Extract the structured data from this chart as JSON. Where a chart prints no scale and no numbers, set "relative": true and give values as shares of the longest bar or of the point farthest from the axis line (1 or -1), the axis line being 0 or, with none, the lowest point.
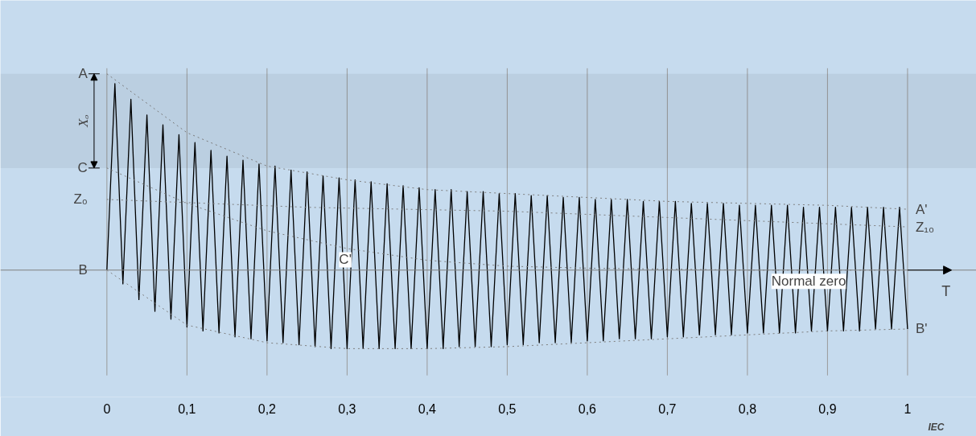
{
  "chart_data": {
    "type": "line",
    "relative": true,
    "xlabel": "T",
    "grid": "x",
    "xlim": [
      -0.133,
      1.086
    ],
    "xticks": [
      0,
      {
        "value": 0.1,
        "label": "0,1"
      },
      {
        "value": 0.2,
        "label": "0,2"
      },
      {
        "value": 0.3,
        "label": "0,3"
      },
      {
        "value": 0.4,
        "label": "0,4"
      },
      {
        "value": 0.5,
        "label": "0,5"
      },
      {
        "value": 0.6,
        "label": "0,6"
      },
      {
        "value": 0.7,
        "label": "0,7"
      },
      {
        "value": 0.8,
        "label": "0,8"
      },
      {
        "value": 0.9,
        "label": "0,9"
      },
      1
    ],
    "series": [
      {
        "color": "#000000",
        "line_style": "solid",
        "x": [
          0,
          0.01,
          0.02,
          0.03,
          0.04,
          0.05,
          0.06,
          0.07,
          0.08,
          0.09,
          0.1,
          0.11,
          0.12,
          0.13,
          0.14,
          0.15,
          0.16,
          0.17,
          0.18,
          0.19,
          0.2,
          0.21,
          0.22,
          0.23,
          0.24,
          0.25,
          0.26,
          0.27,
          0.28,
          0.29,
          0.3,
          0.31,
          0.32,
          0.33,
          0.34,
          0.35,
          0.36,
          0.37,
          0.38,
          0.39,
          0.4,
          0.41,
          0.42,
          0.43,
          0.44,
          0.45,
          0.46,
          0.47,
          0.48,
          0.49,
          0.5,
          0.51,
          0.52,
          0.53,
          0.54,
          0.55,
          0.56,
          0.57,
          0.58,
          0.59,
          0.6,
          0.61,
          0.62,
          0.63,
          0.64,
          0.65,
          0.66,
          0.67,
          0.68,
          0.69,
          0.7,
          0.71,
          0.72,
          0.73,
          0.74,
          0.75,
          0.76,
          0.77,
          0.78,
          0.79,
          0.8,
          0.81,
          0.82,
          0.83,
          0.84,
          0.85,
          0.86,
          0.87,
          0.88,
          0.89,
          0.9,
          0.91,
          0.92,
          0.93,
          0.94,
          0.95,
          0.96,
          0.97,
          0.98,
          0.99,
          1
        ],
        "values": [
          0,
          0.95,
          -0.07,
          0.87,
          -0.15,
          0.79,
          -0.21,
          0.74,
          -0.25,
          0.69,
          -0.29,
          0.65,
          -0.31,
          0.61,
          -0.32,
          0.58,
          -0.34,
          0.56,
          -0.35,
          0.54,
          -0.36,
          0.53,
          -0.37,
          0.51,
          -0.38,
          0.5,
          -0.39,
          0.48,
          -0.4,
          0.47,
          -0.4,
          0.46,
          -0.4,
          0.45,
          -0.4,
          0.44,
          -0.4,
          0.43,
          -0.4,
          0.42,
          -0.4,
          0.41,
          -0.4,
          0.41,
          -0.39,
          0.4,
          -0.39,
          0.4,
          -0.39,
          0.39,
          -0.38,
          0.39,
          -0.38,
          0.38,
          -0.37,
          0.38,
          -0.37,
          0.37,
          -0.37,
          0.37,
          -0.36,
          0.36,
          -0.36,
          0.36,
          -0.35,
          0.36,
          -0.35,
          0.35,
          -0.35,
          0.35,
          -0.34,
          0.35,
          -0.34,
          0.34,
          -0.33,
          0.34,
          -0.33,
          0.34,
          -0.33,
          0.33,
          -0.32,
          0.33,
          -0.32,
          0.33,
          -0.32,
          0.33,
          -0.32,
          0.32,
          -0.31,
          0.32,
          -0.31,
          0.32,
          -0.31,
          0.32,
          -0.31,
          0.32,
          -0.3,
          0.32,
          -0.3,
          0.32,
          -0.3
        ]
      },
      {
        "color": "#7f7f7f",
        "line_style": "dotted",
        "x": [
          0,
          0.1,
          0.2,
          0.3,
          0.4,
          0.5,
          0.6,
          0.7,
          0.8,
          0.9,
          1
        ],
        "values": [
          1,
          0.7,
          0.53,
          0.46,
          0.41,
          0.39,
          0.37,
          0.35,
          0.34,
          0.33,
          0.31
        ]
      },
      {
        "color": "#7f7f7f",
        "line_style": "dotted",
        "x": [
          0,
          0.1,
          0.2,
          0.3,
          0.4,
          0.5,
          0.6,
          0.7,
          0.8,
          0.9,
          1
        ],
        "values": [
          0,
          -0.28,
          -0.37,
          -0.4,
          -0.4,
          -0.39,
          -0.37,
          -0.35,
          -0.33,
          -0.31,
          -0.3
        ]
      },
      {
        "color": "#7f7f7f",
        "line_style": "dotted",
        "x": [
          0,
          0.1,
          0.2,
          0.3,
          0.4,
          0.5,
          0.6,
          0.8,
          1
        ],
        "values": [
          0.52,
          0.34,
          0.2,
          0.11,
          0.05,
          0.02,
          0.01,
          0,
          0
        ]
      },
      {
        "color": "#7f7f7f",
        "line_style": "dotted",
        "x": [
          0,
          0.25,
          0.5,
          0.75,
          1
        ],
        "values": [
          0.36,
          0.32,
          0.3,
          0.26,
          0.22
        ]
      }
    ],
    "bands": [
      {
        "axis": "y",
        "from": 0.52,
        "to": 1,
        "label": "Xₒ",
        "color": "#000000"
      }
    ],
    "ref_lines": [
      {
        "axis": "y",
        "value": 0,
        "label": "Normal zero",
        "color": "#7f7f7f"
      }
    ],
    "annotations": [
      {
        "text": "A",
        "x": 0,
        "y": 1
      },
      {
        "text": "C",
        "x": 0,
        "y": 0.52
      },
      {
        "text": "Z₀",
        "x": 0,
        "y": 0.36
      },
      {
        "text": "B",
        "x": 0,
        "y": 0
      },
      {
        "text": "C'",
        "x": 0.3,
        "y": 0.11
      },
      {
        "text": "A'",
        "x": 1,
        "y": 0.31
      },
      {
        "text": "Z₁₀",
        "x": 1,
        "y": 0.22
      },
      {
        "text": "B'",
        "x": 1,
        "y": -0.3
      },
      "IEC"
    ]
  }
}
